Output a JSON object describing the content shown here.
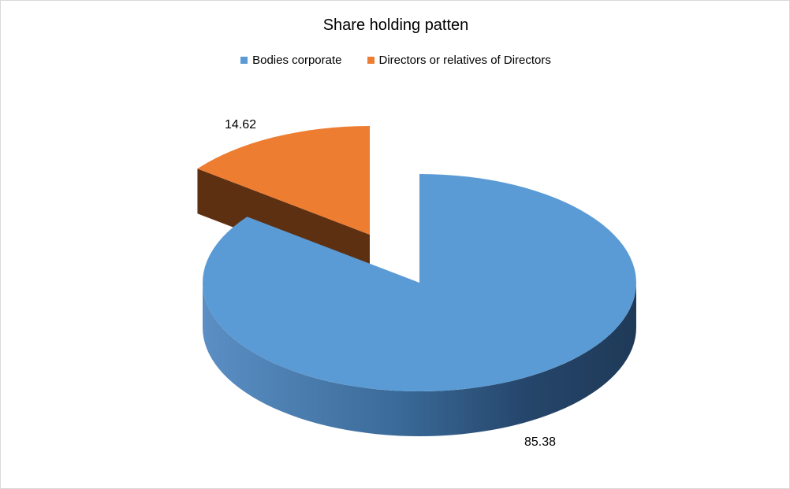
{
  "chart_data": {
    "type": "pie",
    "title": "Share holding patten",
    "categories": [
      "Bodies corporate",
      "Directors or relatives of Directors"
    ],
    "values": [
      85.38,
      14.62
    ],
    "data_labels": [
      "85.38",
      "14.62"
    ],
    "colors": [
      "#5b9bd5",
      "#ed7d31"
    ],
    "side_colors": [
      "#2f5d86",
      "#5e3012"
    ],
    "legend_position": "top",
    "style": "3d-exploded"
  }
}
